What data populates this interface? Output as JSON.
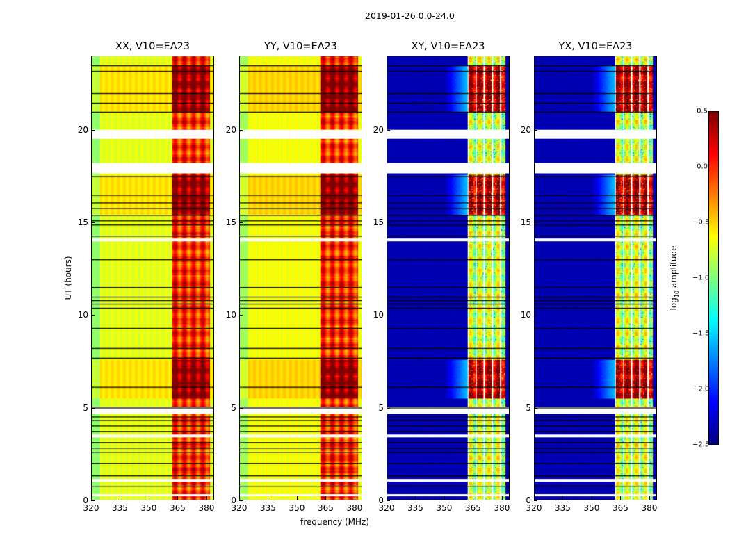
{
  "chart_data": {
    "type": "heatmap",
    "suptitle": "2019-01-26 0.0-24.0",
    "xlabel": "frequency (MHz)",
    "ylabel": "UT (hours)",
    "xlim": [
      320,
      384
    ],
    "ylim": [
      0,
      24
    ],
    "xticks": [
      "320",
      "335",
      "350",
      "365",
      "380"
    ],
    "yticks": [
      "0",
      "5",
      "10",
      "15",
      "20"
    ],
    "colorbar": {
      "label_prefix": "log",
      "label_sub": "10",
      "label_suffix": " amplitude",
      "range": [
        -2.5,
        0.5
      ],
      "ticks": [
        "0.5",
        "0.0",
        "−0.5",
        "−1.0",
        "−1.5",
        "−2.0",
        "−2.5"
      ],
      "colormap": "jet"
    },
    "flagged_hours": [
      [
        0.2,
        0.3
      ],
      [
        1.0,
        1.15
      ],
      [
        3.4,
        3.55
      ],
      [
        4.65,
        5.05
      ],
      [
        14.0,
        14.15
      ],
      [
        17.7,
        18.25
      ],
      [
        19.55,
        20.05
      ]
    ],
    "dark_line_hours": [
      0.75,
      1.3,
      2.0,
      2.6,
      2.8,
      3.1,
      3.7,
      4.0,
      4.3,
      4.5,
      5.0,
      6.1,
      7.7,
      8.2,
      9.3,
      10.4,
      10.6,
      10.8,
      11.0,
      11.5,
      13.0,
      14.3,
      14.9,
      15.1,
      15.4,
      15.8,
      16.1,
      16.5,
      17.5,
      21.0,
      21.5,
      22.0,
      23.2,
      23.5
    ],
    "rfi_band_mhz": [
      362,
      382
    ],
    "active_hours": [
      [
        5.5,
        7.6
      ],
      [
        15.4,
        17.6
      ],
      [
        21.0,
        23.5
      ]
    ],
    "panels": [
      {
        "title": "XX, V10=EA23",
        "background_level": -0.7,
        "band_level": -0.1,
        "active_level": 0.35
      },
      {
        "title": "YY, V10=EA23",
        "background_level": -0.65,
        "band_level": -0.1,
        "active_level": 0.4
      },
      {
        "title": "XY, V10=EA23",
        "background_level": -2.4,
        "band_level": -0.9,
        "active_level": 0.2
      },
      {
        "title": "YX, V10=EA23",
        "background_level": -2.4,
        "band_level": -0.9,
        "active_level": 0.2
      }
    ]
  }
}
